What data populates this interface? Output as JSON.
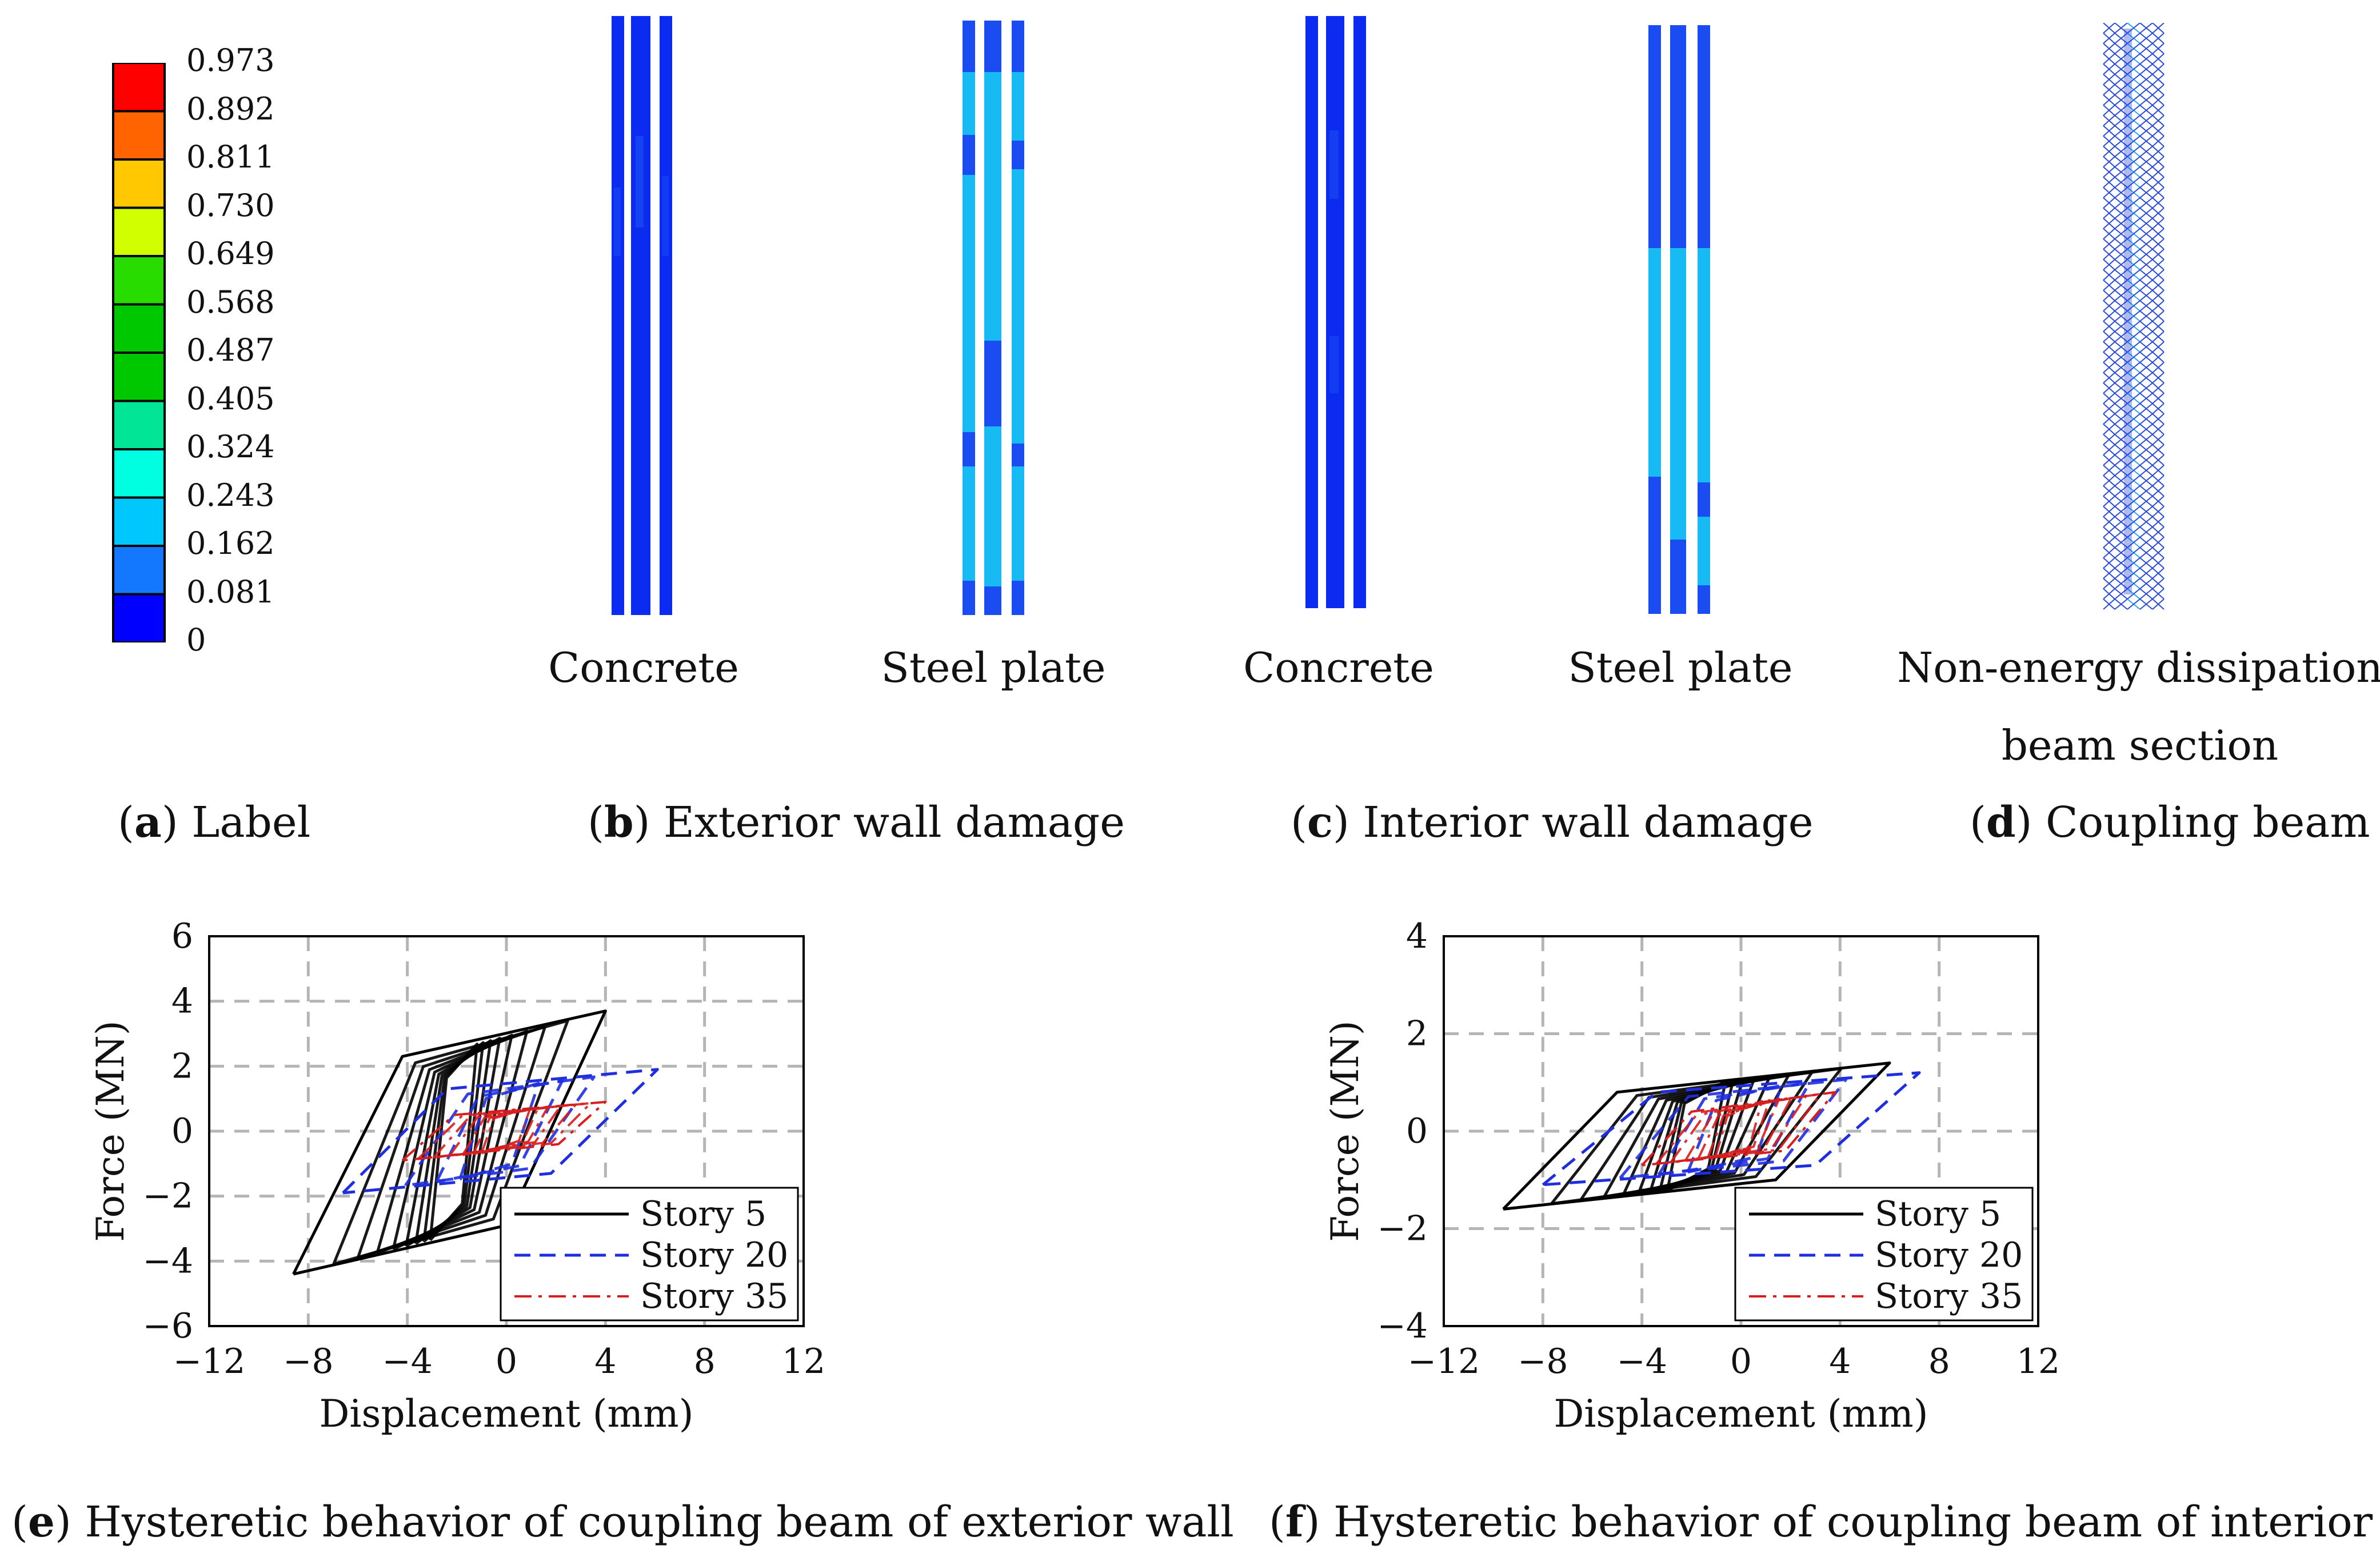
{
  "figure": {
    "panels": {
      "a": {
        "letter": "a",
        "caption": "Label"
      },
      "b": {
        "letter": "b",
        "caption": "Exterior wall damage",
        "left_label": "Concrete",
        "right_label": "Steel plate"
      },
      "c": {
        "letter": "c",
        "caption": "Interior wall damage",
        "left_label": "Concrete",
        "right_label": "Steel plate"
      },
      "d": {
        "letter": "d",
        "caption": "Coupling beam",
        "label_line1": "Non-energy dissipation",
        "label_line2": "beam section"
      },
      "e": {
        "letter": "e",
        "caption": "Hysteretic behavior of coupling beam of exterior wall"
      },
      "f": {
        "letter": "f",
        "caption": "Hysteretic behavior of coupling beam of interior wall"
      }
    },
    "colorbar": {
      "values": [
        "0.973",
        "0.892",
        "0.811",
        "0.730",
        "0.649",
        "0.568",
        "0.487",
        "0.405",
        "0.324",
        "0.243",
        "0.162",
        "0.081",
        "0"
      ],
      "colors": [
        "#ff0000",
        "#ff6400",
        "#ffc800",
        "#d2ff00",
        "#28dc00",
        "#00c800",
        "#00c800",
        "#00e696",
        "#00ffe1",
        "#00c8ff",
        "#1478ff",
        "#0000ff"
      ]
    },
    "colors": {
      "concrete": "#0b2cf0",
      "steel_light": "#18baf4",
      "steel_dark": "#1a4cf2"
    }
  },
  "chart_data": [
    {
      "type": "line",
      "title": "",
      "xlabel": "Displacement (mm)",
      "ylabel": "Force (MN)",
      "xlim": [
        -12,
        12
      ],
      "ylim": [
        -6,
        6
      ],
      "xticks": [
        -12,
        -8,
        -4,
        0,
        4,
        8,
        12
      ],
      "xtick_labels": [
        "−12",
        "−8",
        "−4",
        "0",
        "4",
        "8",
        "12"
      ],
      "yticks": [
        -6,
        -4,
        -2,
        0,
        2,
        4,
        6
      ],
      "ytick_labels": [
        "−6",
        "−4",
        "−2",
        "0",
        "2",
        "4",
        "6"
      ],
      "grid": true,
      "legend_position": "bottom-right",
      "series": [
        {
          "name": "Story 5",
          "style": "solid",
          "color": "#000000",
          "x": [
            -8.6,
            -4.2,
            4.0,
            0.0,
            -8.6
          ],
          "y": [
            -4.4,
            2.3,
            3.7,
            -2.9,
            -4.4
          ]
        },
        {
          "name": "Story 20",
          "style": "dashed",
          "color": "#1f2fe0",
          "x": [
            -6.6,
            -2.4,
            6.1,
            1.8,
            -6.6
          ],
          "y": [
            -1.9,
            1.3,
            1.9,
            -1.3,
            -1.9
          ]
        },
        {
          "name": "Story 35",
          "style": "dashdot",
          "color": "#d61e1e",
          "x": [
            -4.2,
            -2.1,
            4.0,
            2.1,
            -4.2
          ],
          "y": [
            -0.9,
            0.5,
            0.9,
            -0.4,
            -0.9
          ]
        }
      ]
    },
    {
      "type": "line",
      "title": "",
      "xlabel": "Displacement (mm)",
      "ylabel": "Force (MN)",
      "xlim": [
        -12,
        12
      ],
      "ylim": [
        -4,
        4
      ],
      "xticks": [
        -12,
        -8,
        -4,
        0,
        4,
        8,
        12
      ],
      "xtick_labels": [
        "−12",
        "−8",
        "−4",
        "0",
        "4",
        "8",
        "12"
      ],
      "yticks": [
        -4,
        -2,
        0,
        2,
        4
      ],
      "ytick_labels": [
        "−4",
        "−2",
        "0",
        "2",
        "4"
      ],
      "grid": true,
      "legend_position": "bottom-right",
      "series": [
        {
          "name": "Story 5",
          "style": "solid",
          "color": "#000000",
          "x": [
            -9.6,
            -5.0,
            6.0,
            1.4,
            -9.6
          ],
          "y": [
            -1.6,
            0.8,
            1.4,
            -1.0,
            -1.6
          ]
        },
        {
          "name": "Story 20",
          "style": "dashed",
          "color": "#1f2fe0",
          "x": [
            -8.0,
            -3.4,
            7.2,
            3.0,
            -8.0
          ],
          "y": [
            -1.1,
            0.8,
            1.2,
            -0.7,
            -1.1
          ]
        },
        {
          "name": "Story 35",
          "style": "dashdot",
          "color": "#d61e1e",
          "x": [
            -4.0,
            -2.0,
            3.8,
            1.8,
            -4.0
          ],
          "y": [
            -0.7,
            0.4,
            0.8,
            -0.4,
            -0.7
          ]
        }
      ]
    }
  ]
}
